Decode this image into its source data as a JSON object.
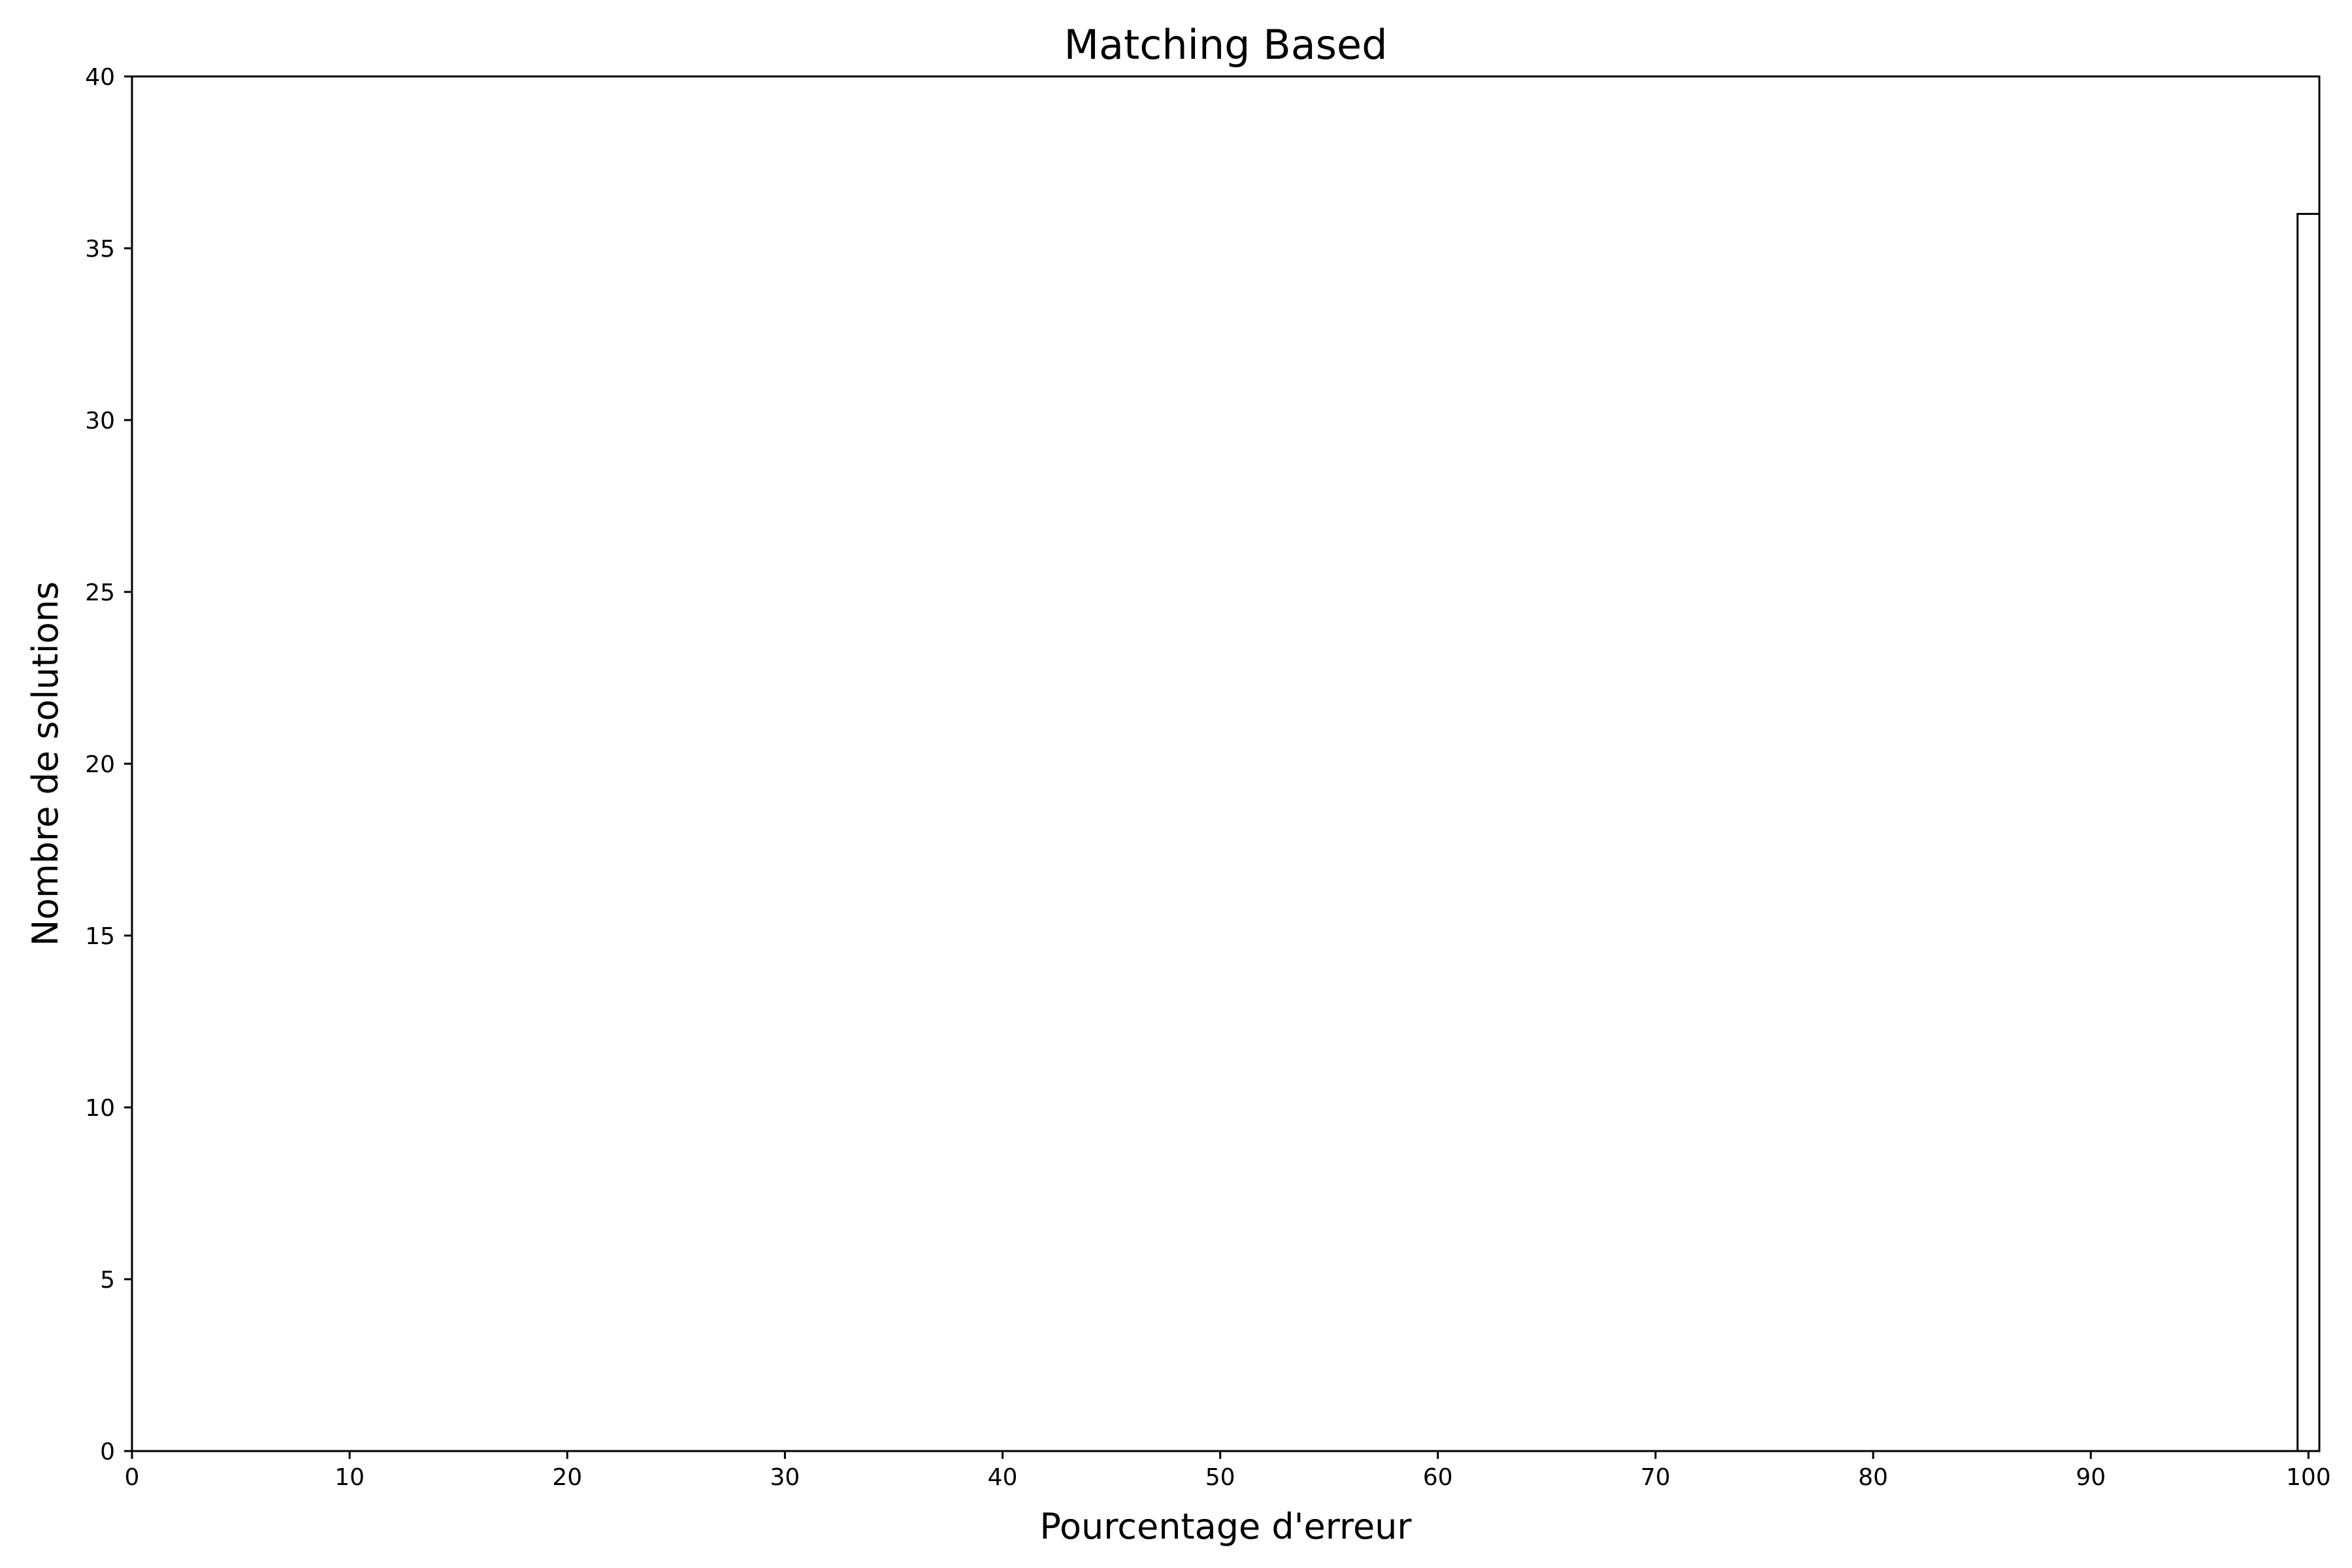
{
  "chart_data": {
    "type": "bar",
    "title": "Matching Based",
    "xlabel": "Pourcentage d'erreur",
    "ylabel": "Nombre de solutions",
    "xlim": [
      0,
      100.5
    ],
    "ylim": [
      0,
      40
    ],
    "xticks": [
      0,
      10,
      20,
      30,
      40,
      50,
      60,
      70,
      80,
      90,
      100
    ],
    "yticks": [
      0,
      5,
      10,
      15,
      20,
      25,
      30,
      35,
      40
    ],
    "bins": [
      {
        "x0": 99.5,
        "x1": 100.5,
        "value": 36
      }
    ],
    "bar_fill": "#ffffff",
    "bar_edge": "#000000",
    "grid": false,
    "legend": false
  }
}
